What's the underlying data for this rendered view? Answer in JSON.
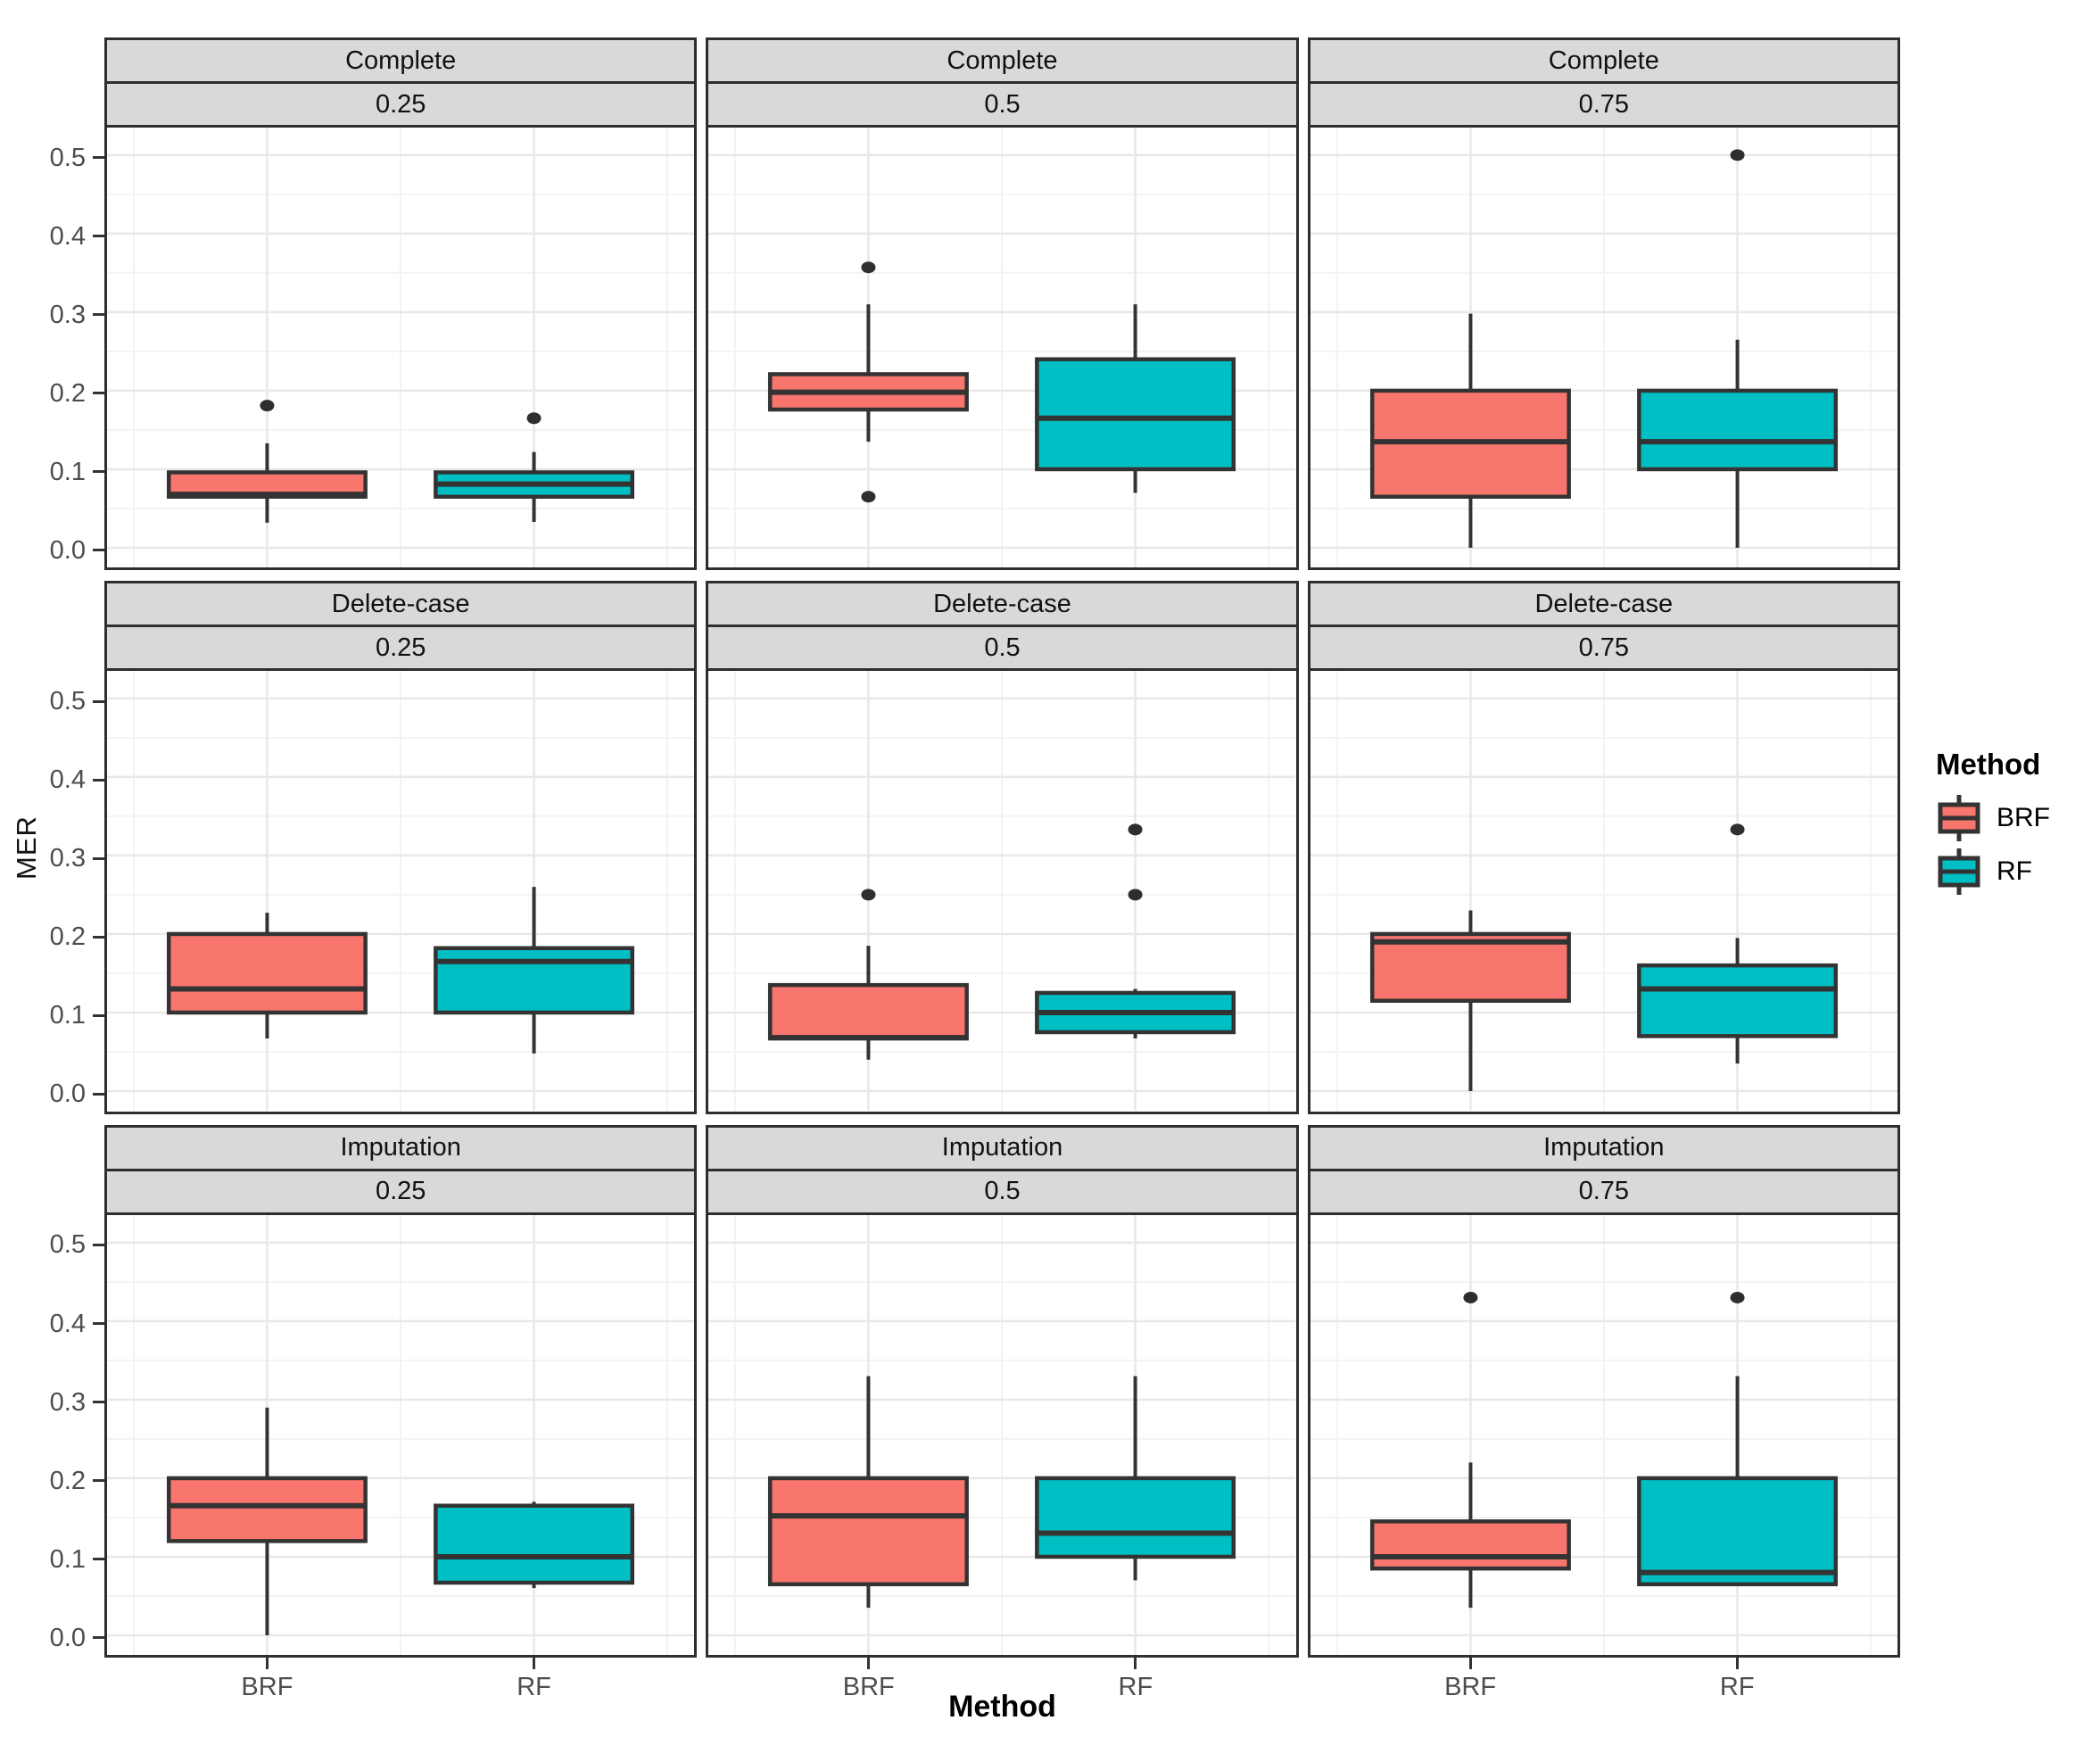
{
  "axes": {
    "y_label": "MER",
    "x_label": "Method",
    "y_tick_labels": [
      "0.0",
      "0.1",
      "0.2",
      "0.3",
      "0.4",
      "0.5"
    ],
    "x_categories": [
      "BRF",
      "RF"
    ]
  },
  "legend": {
    "title": "Method",
    "entries": [
      {
        "label": "BRF",
        "color": "#F8766D"
      },
      {
        "label": "RF",
        "color": "#00BFC4"
      }
    ]
  },
  "style": {
    "box_stroke": "#333333",
    "outlier_color": "#2E2E2E",
    "strip_bg": "#D9D9D9",
    "panel_bg": "#FFFFFF",
    "grid_major": "#E8E8E8",
    "grid_minor": "#F3F3F3",
    "tick_text": "#4D4D4D"
  },
  "chart_data": {
    "type": "boxplot",
    "title": "",
    "xlabel": "Method",
    "ylabel": "MER",
    "facet_rows": [
      "Complete",
      "Delete-case",
      "Imputation"
    ],
    "facet_cols": [
      "0.25",
      "0.5",
      "0.75"
    ],
    "x_categories": [
      "BRF",
      "RF"
    ],
    "ylim": [
      -0.025,
      0.535
    ],
    "y_major_ticks": [
      0.0,
      0.1,
      0.2,
      0.3,
      0.4,
      0.5
    ],
    "y_minor_ticks": [
      0.05,
      0.15,
      0.25,
      0.35,
      0.45
    ],
    "grid": true,
    "legend_position": "right",
    "series": [
      {
        "name": "BRF",
        "color": "#F8766D"
      },
      {
        "name": "RF",
        "color": "#00BFC4"
      }
    ],
    "panels": [
      {
        "row": "Complete",
        "col": "0.25",
        "boxes": [
          {
            "method": "BRF",
            "whisker_low": 0.032,
            "q1": 0.065,
            "median": 0.068,
            "q3": 0.096,
            "whisker_high": 0.133,
            "outliers": [
              0.181
            ]
          },
          {
            "method": "RF",
            "whisker_low": 0.033,
            "q1": 0.065,
            "median": 0.081,
            "q3": 0.096,
            "whisker_high": 0.122,
            "outliers": [
              0.165
            ]
          }
        ]
      },
      {
        "row": "Complete",
        "col": "0.5",
        "boxes": [
          {
            "method": "BRF",
            "whisker_low": 0.135,
            "q1": 0.176,
            "median": 0.198,
            "q3": 0.221,
            "whisker_high": 0.31,
            "outliers": [
              0.357,
              0.065
            ]
          },
          {
            "method": "RF",
            "whisker_low": 0.07,
            "q1": 0.1,
            "median": 0.165,
            "q3": 0.24,
            "whisker_high": 0.31,
            "outliers": []
          }
        ]
      },
      {
        "row": "Complete",
        "col": "0.75",
        "boxes": [
          {
            "method": "BRF",
            "whisker_low": 0.0,
            "q1": 0.065,
            "median": 0.135,
            "q3": 0.2,
            "whisker_high": 0.298,
            "outliers": []
          },
          {
            "method": "RF",
            "whisker_low": 0.0,
            "q1": 0.1,
            "median": 0.135,
            "q3": 0.2,
            "whisker_high": 0.265,
            "outliers": [
              0.5
            ]
          }
        ]
      },
      {
        "row": "Delete-case",
        "col": "0.25",
        "boxes": [
          {
            "method": "BRF",
            "whisker_low": 0.067,
            "q1": 0.1,
            "median": 0.13,
            "q3": 0.2,
            "whisker_high": 0.227,
            "outliers": []
          },
          {
            "method": "RF",
            "whisker_low": 0.048,
            "q1": 0.1,
            "median": 0.165,
            "q3": 0.182,
            "whisker_high": 0.26,
            "outliers": []
          }
        ]
      },
      {
        "row": "Delete-case",
        "col": "0.5",
        "boxes": [
          {
            "method": "BRF",
            "whisker_low": 0.04,
            "q1": 0.067,
            "median": 0.068,
            "q3": 0.135,
            "whisker_high": 0.185,
            "outliers": [
              0.25
            ]
          },
          {
            "method": "RF",
            "whisker_low": 0.067,
            "q1": 0.075,
            "median": 0.1,
            "q3": 0.125,
            "whisker_high": 0.13,
            "outliers": [
              0.25,
              0.333
            ]
          }
        ]
      },
      {
        "row": "Delete-case",
        "col": "0.75",
        "boxes": [
          {
            "method": "BRF",
            "whisker_low": 0.0,
            "q1": 0.115,
            "median": 0.19,
            "q3": 0.2,
            "whisker_high": 0.23,
            "outliers": []
          },
          {
            "method": "RF",
            "whisker_low": 0.035,
            "q1": 0.07,
            "median": 0.13,
            "q3": 0.16,
            "whisker_high": 0.195,
            "outliers": [
              0.333
            ]
          }
        ]
      },
      {
        "row": "Imputation",
        "col": "0.25",
        "boxes": [
          {
            "method": "BRF",
            "whisker_low": 0.0,
            "q1": 0.12,
            "median": 0.165,
            "q3": 0.2,
            "whisker_high": 0.29,
            "outliers": []
          },
          {
            "method": "RF",
            "whisker_low": 0.06,
            "q1": 0.067,
            "median": 0.1,
            "q3": 0.165,
            "whisker_high": 0.17,
            "outliers": []
          }
        ]
      },
      {
        "row": "Imputation",
        "col": "0.5",
        "boxes": [
          {
            "method": "BRF",
            "whisker_low": 0.035,
            "q1": 0.065,
            "median": 0.152,
            "q3": 0.2,
            "whisker_high": 0.33,
            "outliers": []
          },
          {
            "method": "RF",
            "whisker_low": 0.07,
            "q1": 0.1,
            "median": 0.13,
            "q3": 0.2,
            "whisker_high": 0.33,
            "outliers": []
          }
        ]
      },
      {
        "row": "Imputation",
        "col": "0.75",
        "boxes": [
          {
            "method": "BRF",
            "whisker_low": 0.035,
            "q1": 0.085,
            "median": 0.1,
            "q3": 0.145,
            "whisker_high": 0.22,
            "outliers": [
              0.43
            ]
          },
          {
            "method": "RF",
            "whisker_low": 0.065,
            "q1": 0.065,
            "median": 0.08,
            "q3": 0.2,
            "whisker_high": 0.33,
            "outliers": [
              0.43
            ]
          }
        ]
      }
    ]
  }
}
